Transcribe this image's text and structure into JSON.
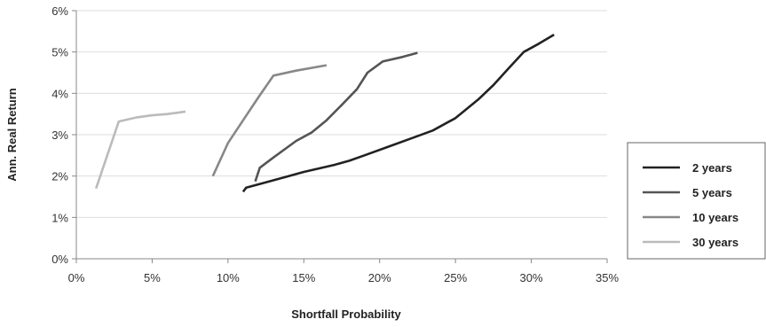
{
  "chart_data": {
    "type": "line",
    "xlabel": "Shortfall Probability",
    "ylabel": "Ann. Real Return",
    "xlim": [
      0,
      35
    ],
    "ylim": [
      0,
      6
    ],
    "x_ticks": [
      0,
      5,
      10,
      15,
      20,
      25,
      30,
      35
    ],
    "y_ticks": [
      0,
      1,
      2,
      3,
      4,
      5,
      6
    ],
    "x_tick_labels": [
      "0%",
      "5%",
      "10%",
      "15%",
      "20%",
      "25%",
      "30%",
      "35%"
    ],
    "y_tick_labels": [
      "0%",
      "1%",
      "2%",
      "3%",
      "4%",
      "5%",
      "6%"
    ],
    "grid": "horizontal",
    "legend_position": "right",
    "series": [
      {
        "name": "2 years",
        "color": "#222222",
        "points": [
          [
            11.0,
            1.62
          ],
          [
            11.2,
            1.72
          ],
          [
            12.5,
            1.85
          ],
          [
            14.0,
            2.0
          ],
          [
            15.0,
            2.1
          ],
          [
            17.0,
            2.27
          ],
          [
            18.0,
            2.37
          ],
          [
            19.0,
            2.5
          ],
          [
            20.5,
            2.7
          ],
          [
            22.0,
            2.9
          ],
          [
            23.5,
            3.1
          ],
          [
            25.0,
            3.4
          ],
          [
            26.5,
            3.85
          ],
          [
            27.5,
            4.2
          ],
          [
            28.5,
            4.6
          ],
          [
            29.5,
            5.0
          ],
          [
            30.5,
            5.2
          ],
          [
            31.5,
            5.42
          ]
        ]
      },
      {
        "name": "5 years",
        "color": "#555555",
        "points": [
          [
            11.8,
            1.87
          ],
          [
            12.1,
            2.2
          ],
          [
            13.0,
            2.45
          ],
          [
            14.5,
            2.85
          ],
          [
            15.5,
            3.05
          ],
          [
            16.5,
            3.35
          ],
          [
            17.5,
            3.72
          ],
          [
            18.5,
            4.1
          ],
          [
            19.2,
            4.5
          ],
          [
            20.2,
            4.77
          ],
          [
            21.5,
            4.88
          ],
          [
            22.5,
            4.98
          ]
        ]
      },
      {
        "name": "10 years",
        "color": "#888888",
        "points": [
          [
            9.0,
            2.0
          ],
          [
            10.0,
            2.8
          ],
          [
            11.0,
            3.35
          ],
          [
            12.0,
            3.9
          ],
          [
            13.0,
            4.43
          ],
          [
            14.5,
            4.55
          ],
          [
            16.5,
            4.68
          ]
        ]
      },
      {
        "name": "30 years",
        "color": "#bbbbbb",
        "points": [
          [
            1.3,
            1.7
          ],
          [
            2.8,
            3.32
          ],
          [
            4.0,
            3.42
          ],
          [
            5.0,
            3.47
          ],
          [
            6.0,
            3.5
          ],
          [
            7.2,
            3.56
          ]
        ]
      }
    ]
  }
}
